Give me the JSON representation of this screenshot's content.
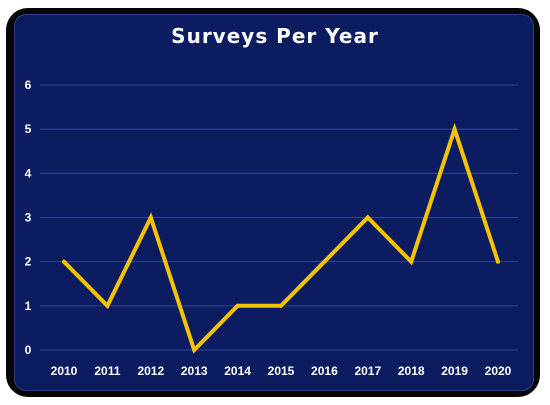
{
  "chart_data": {
    "type": "line",
    "title": "Surveys Per Year",
    "xlabel": "",
    "ylabel": "",
    "x": [
      "2010",
      "2011",
      "2012",
      "2013",
      "2014",
      "2015",
      "2016",
      "2017",
      "2018",
      "2019",
      "2020"
    ],
    "series": [
      {
        "values": [
          2,
          1,
          3,
          0,
          1,
          1,
          2,
          3,
          2,
          5,
          2
        ]
      }
    ],
    "ylim": [
      0,
      6
    ],
    "yticks": [
      "0",
      "1",
      "2",
      "3",
      "4",
      "5",
      "6"
    ],
    "grid": true,
    "legend": "none"
  },
  "colors": {
    "background": "#0b1d60",
    "frame": "#050505",
    "line": "#f5c200",
    "grid": "#2d4596",
    "text": "#ffffff"
  }
}
